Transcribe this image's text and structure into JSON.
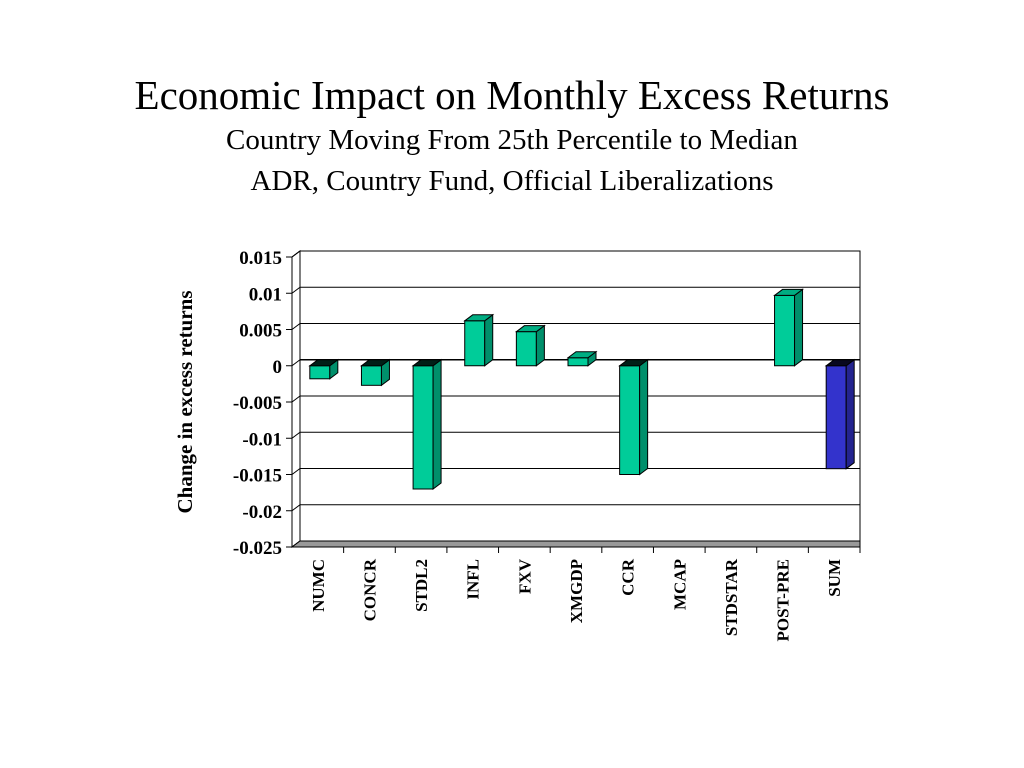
{
  "header": {
    "title": "Economic Impact on Monthly Excess Returns",
    "subtitle_1": "Country Moving From 25th Percentile to Median",
    "subtitle_2": "ADR, Country Fund, Official Liberalizations"
  },
  "chart_data": {
    "type": "bar",
    "style": "3d",
    "title": "",
    "xlabel": "",
    "ylabel": "Change in excess returns",
    "ylim": [
      -0.025,
      0.015
    ],
    "yticks": [
      0.015,
      0.01,
      0.005,
      0,
      -0.005,
      -0.01,
      -0.015,
      -0.02,
      -0.025
    ],
    "ytick_labels": [
      "0.015",
      "0.01",
      "0.005",
      "0",
      "-0.005",
      "-0.01",
      "-0.015",
      "-0.02",
      "-0.025"
    ],
    "grid": "horizontal",
    "categories": [
      "NUMC",
      "CONCR",
      "STDL2",
      "INFL",
      "FXV",
      "XMGDP",
      "CCR",
      "MCAP",
      "STDSTAR",
      "POST-PRE",
      "SUM"
    ],
    "values": [
      -0.0018,
      -0.0027,
      -0.017,
      0.0062,
      0.0047,
      0.0011,
      -0.015,
      0,
      0,
      0.0097,
      -0.0142
    ],
    "colors": {
      "default": "#00cc99",
      "highlight": "#3333cc",
      "highlight_category": "SUM"
    }
  }
}
